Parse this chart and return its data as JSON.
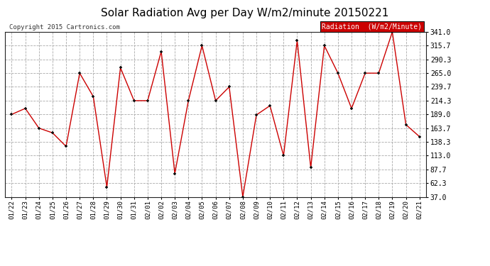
{
  "title": "Solar Radiation Avg per Day W/m2/minute 20150221",
  "copyright": "Copyright 2015 Cartronics.com",
  "legend_label": "Radiation  (W/m2/Minute)",
  "dates": [
    "01/22",
    "01/23",
    "01/24",
    "01/25",
    "01/26",
    "01/27",
    "01/28",
    "01/29",
    "01/30",
    "01/31",
    "02/01",
    "02/02",
    "02/03",
    "02/04",
    "02/05",
    "02/06",
    "02/07",
    "02/08",
    "02/09",
    "02/10",
    "02/11",
    "02/12",
    "02/13",
    "02/14",
    "02/15",
    "02/16",
    "02/17",
    "02/18",
    "02/19",
    "02/20",
    "02/21"
  ],
  "values": [
    189.0,
    200.0,
    163.7,
    155.0,
    130.0,
    265.0,
    222.0,
    55.0,
    275.0,
    214.3,
    214.3,
    305.0,
    80.0,
    214.3,
    315.7,
    214.3,
    239.7,
    37.0,
    188.0,
    205.0,
    113.0,
    325.0,
    91.0,
    315.7,
    265.0,
    200.0,
    265.0,
    265.0,
    341.0,
    170.0,
    148.0
  ],
  "ylim": [
    37.0,
    341.0
  ],
  "yticks": [
    37.0,
    62.3,
    87.7,
    113.0,
    138.3,
    163.7,
    189.0,
    214.3,
    239.7,
    265.0,
    290.3,
    315.7,
    341.0
  ],
  "line_color": "#cc0000",
  "marker_color": "#111111",
  "bg_color": "#ffffff",
  "grid_color": "#aaaaaa",
  "title_fontsize": 11,
  "legend_bg": "#cc0000",
  "legend_text_color": "#ffffff"
}
